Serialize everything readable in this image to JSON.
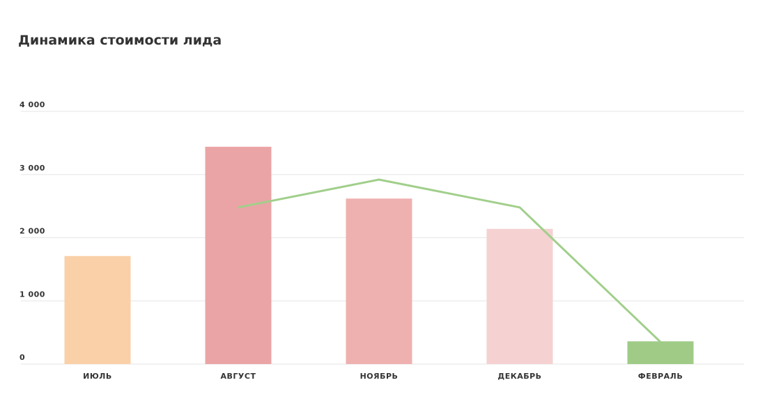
{
  "chart_data": {
    "type": "bar",
    "title": "Динамика стоимости лида",
    "categories": [
      "ИЮЛЬ",
      "АВГУСТ",
      "НОЯБРЬ",
      "ДЕКАБРЬ",
      "ФЕВРАЛЬ"
    ],
    "values": [
      1710,
      3440,
      2620,
      2140,
      360
    ],
    "colors": [
      "#f9d0a8",
      "#eba4a5",
      "#efb0b0",
      "#f5d1d2",
      "#9fcb87"
    ],
    "line": {
      "color": "#a1cf8b",
      "values": [
        null,
        2480,
        2920,
        2480,
        350
      ]
    },
    "ylim": [
      0,
      4000
    ],
    "yticks": [
      0,
      {
        "value": 1000,
        "label": "1 000"
      },
      {
        "value": 2000,
        "label": "2 000"
      },
      {
        "value": 3000,
        "label": "3 000"
      },
      {
        "value": 4000,
        "label": "4 000"
      }
    ],
    "grid": true
  }
}
